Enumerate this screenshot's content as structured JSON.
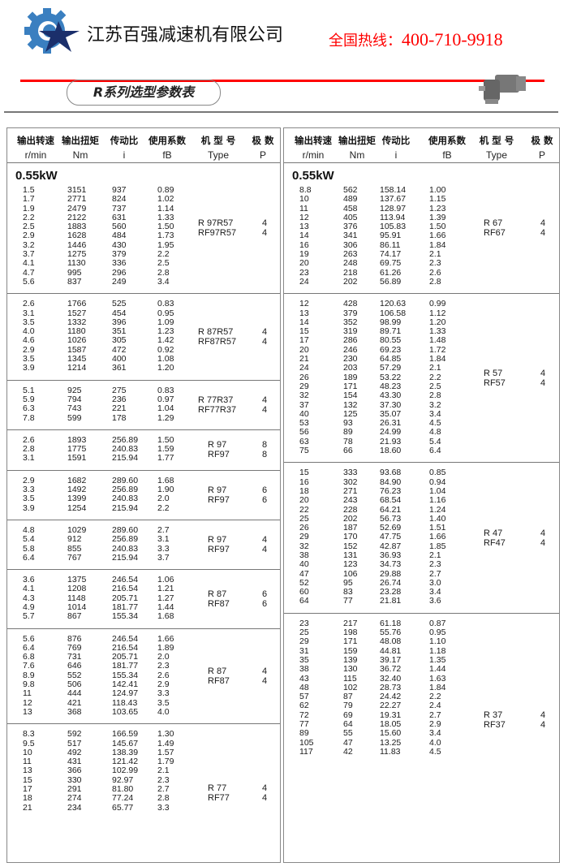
{
  "header": {
    "company": "江苏百强减速机有限公司",
    "hotline_label": "全国热线：",
    "hotline_number": "400-710-9918",
    "section_title": "R系列选型参数表",
    "brand_blue": "#3a7fc0",
    "brand_navy": "#1b2f6b",
    "accent_red": "#ff0000"
  },
  "columns": [
    {
      "cn": "输出转速",
      "en": "r/min"
    },
    {
      "cn": "输出扭矩",
      "en": "Nm"
    },
    {
      "cn": "传动比",
      "en": "i"
    },
    {
      "cn": "使用系数",
      "en": "fB"
    },
    {
      "cn": "机 型 号",
      "en": "Type"
    },
    {
      "cn": "极  数",
      "en": "P"
    }
  ],
  "tables": [
    {
      "blocks": [
        {
          "title": "0.55kW",
          "type": [
            "R  97R57",
            "RF97R57"
          ],
          "poles": [
            "4",
            "4"
          ],
          "rows": [
            [
              "1.5",
              "3151",
              "937",
              "0.89"
            ],
            [
              "1.7",
              "2771",
              "824",
              "1.02"
            ],
            [
              "1.9",
              "2479",
              "737",
              "1.14"
            ],
            [
              "2.2",
              "2122",
              "631",
              "1.33"
            ],
            [
              "2.5",
              "1883",
              "560",
              "1.50"
            ],
            [
              "2.9",
              "1628",
              "484",
              "1.73"
            ],
            [
              "3.2",
              "1446",
              "430",
              "1.95"
            ],
            [
              "3.7",
              "1275",
              "379",
              "2.2"
            ],
            [
              "4.1",
              "1130",
              "336",
              "2.5"
            ],
            [
              "4.7",
              "995",
              "296",
              "2.8"
            ],
            [
              "5.6",
              "837",
              "249",
              "3.4"
            ]
          ]
        },
        {
          "type": [
            "R  87R57",
            "RF87R57"
          ],
          "poles": [
            "4",
            "4"
          ],
          "rows": [
            [
              "2.6",
              "1766",
              "525",
              "0.83"
            ],
            [
              "3.1",
              "1527",
              "454",
              "0.95"
            ],
            [
              "3.5",
              "1332",
              "396",
              "1.09"
            ],
            [
              "4.0",
              "1180",
              "351",
              "1.23"
            ],
            [
              "4.6",
              "1026",
              "305",
              "1.42"
            ],
            [
              "2.9",
              "1587",
              "472",
              "0.92"
            ],
            [
              "3.5",
              "1345",
              "400",
              "1.08"
            ],
            [
              "3.9",
              "1214",
              "361",
              "1.20"
            ]
          ]
        },
        {
          "type": [
            "R  77R37",
            "RF77R37"
          ],
          "poles": [
            "4",
            "4"
          ],
          "rows": [
            [
              "5.1",
              "925",
              "275",
              "0.83"
            ],
            [
              "5.9",
              "794",
              "236",
              "0.97"
            ],
            [
              "6.3",
              "743",
              "221",
              "1.04"
            ],
            [
              "7.8",
              "599",
              "178",
              "1.29"
            ]
          ]
        },
        {
          "type": [
            "R  97",
            "RF97"
          ],
          "poles": [
            "8",
            "8"
          ],
          "indent": true,
          "rows": [
            [
              "2.6",
              "1893",
              "256.89",
              "1.50"
            ],
            [
              "2.8",
              "1775",
              "240.83",
              "1.59"
            ],
            [
              "3.1",
              "1591",
              "215.94",
              "1.77"
            ]
          ]
        },
        {
          "type": [
            "R  97",
            "RF97"
          ],
          "poles": [
            "6",
            "6"
          ],
          "indent": true,
          "rows": [
            [
              "2.9",
              "1682",
              "289.60",
              "1.68"
            ],
            [
              "3.3",
              "1492",
              "256.89",
              "1.90"
            ],
            [
              "3.5",
              "1399",
              "240.83",
              "2.0"
            ],
            [
              "3.9",
              "1254",
              "215.94",
              "2.2"
            ]
          ]
        },
        {
          "type": [
            "R  97",
            "RF97"
          ],
          "poles": [
            "4",
            "4"
          ],
          "indent": true,
          "rows": [
            [
              "4.8",
              "1029",
              "289.60",
              "2.7"
            ],
            [
              "5.4",
              "912",
              "256.89",
              "3.1"
            ],
            [
              "5.8",
              "855",
              "240.83",
              "3.3"
            ],
            [
              "6.4",
              "767",
              "215.94",
              "3.7"
            ]
          ]
        },
        {
          "type": [
            "R  87",
            "RF87"
          ],
          "poles": [
            "6",
            "6"
          ],
          "indent": true,
          "rows": [
            [
              "3.6",
              "1375",
              "246.54",
              "1.06"
            ],
            [
              "4.1",
              "1208",
              "216.54",
              "1.21"
            ],
            [
              "4.3",
              "1148",
              "205.71",
              "1.27"
            ],
            [
              "4.9",
              "1014",
              "181.77",
              "1.44"
            ],
            [
              "5.7",
              "867",
              "155.34",
              "1.68"
            ]
          ]
        },
        {
          "type": [
            "R  87",
            "RF87"
          ],
          "poles": [
            "4",
            "4"
          ],
          "indent": true,
          "rows": [
            [
              "5.6",
              "876",
              "246.54",
              "1.66"
            ],
            [
              "6.4",
              "769",
              "216.54",
              "1.89"
            ],
            [
              "6.8",
              "731",
              "205.71",
              "2.0"
            ],
            [
              "7.6",
              "646",
              "181.77",
              "2.3"
            ],
            [
              "8.9",
              "552",
              "155.34",
              "2.6"
            ],
            [
              "9.8",
              "506",
              "142.41",
              "2.9"
            ],
            [
              "11",
              "444",
              "124.97",
              "3.3"
            ],
            [
              "12",
              "421",
              "118.43",
              "3.5"
            ],
            [
              "13",
              "368",
              "103.65",
              "4.0"
            ]
          ]
        },
        {
          "type": [
            "R  77",
            "RF77"
          ],
          "poles": [
            "4",
            "4"
          ],
          "indent": true,
          "rows": [
            [
              "8.3",
              "592",
              "166.59",
              "1.30"
            ],
            [
              "9.5",
              "517",
              "145.67",
              "1.49"
            ],
            [
              "10",
              "492",
              "138.39",
              "1.57"
            ],
            [
              "11",
              "431",
              "121.42",
              "1.79"
            ],
            [
              "13",
              "366",
              "102.99",
              "2.1"
            ],
            [
              "15",
              "330",
              "92.97",
              "2.3"
            ],
            [
              "17",
              "291",
              "81.80",
              "2.7"
            ],
            [
              "18",
              "274",
              "77.24",
              "2.8"
            ],
            [
              "21",
              "234",
              "65.77",
              "3.3"
            ]
          ]
        }
      ]
    },
    {
      "blocks": [
        {
          "title": "0.55kW",
          "type": [
            "R  67",
            "RF67"
          ],
          "poles": [
            "4",
            "4"
          ],
          "rows": [
            [
              "8.8",
              "562",
              "158.14",
              "1.00"
            ],
            [
              "10",
              "489",
              "137.67",
              "1.15"
            ],
            [
              "11",
              "458",
              "128.97",
              "1.23"
            ],
            [
              "12",
              "405",
              "113.94",
              "1.39"
            ],
            [
              "13",
              "376",
              "105.83",
              "1.50"
            ],
            [
              "14",
              "341",
              "95.91",
              "1.66"
            ],
            [
              "16",
              "306",
              "86.11",
              "1.84"
            ],
            [
              "19",
              "263",
              "74.17",
              "2.1"
            ],
            [
              "20",
              "248",
              "69.75",
              "2.3"
            ],
            [
              "23",
              "218",
              "61.26",
              "2.6"
            ],
            [
              "24",
              "202",
              "56.89",
              "2.8"
            ]
          ]
        },
        {
          "type": [
            "R  57",
            "RF57"
          ],
          "poles": [
            "4",
            "4"
          ],
          "rows": [
            [
              "12",
              "428",
              "120.63",
              "0.99"
            ],
            [
              "13",
              "379",
              "106.58",
              "1.12"
            ],
            [
              "14",
              "352",
              "98.99",
              "1.20"
            ],
            [
              "15",
              "319",
              "89.71",
              "1.33"
            ],
            [
              "17",
              "286",
              "80.55",
              "1.48"
            ],
            [
              "20",
              "246",
              "69.23",
              "1.72"
            ],
            [
              "21",
              "230",
              "64.85",
              "1.84"
            ],
            [
              "24",
              "203",
              "57.29",
              "2.1"
            ],
            [
              "26",
              "189",
              "53.22",
              "2.2"
            ],
            [
              "29",
              "171",
              "48.23",
              "2.5"
            ],
            [
              "32",
              "154",
              "43.30",
              "2.8"
            ],
            [
              "37",
              "132",
              "37.30",
              "3.2"
            ],
            [
              "40",
              "125",
              "35.07",
              "3.4"
            ],
            [
              "53",
              "93",
              "26.31",
              "4.5"
            ],
            [
              "56",
              "89",
              "24.99",
              "4.8"
            ],
            [
              "63",
              "78",
              "21.93",
              "5.4"
            ],
            [
              "75",
              "66",
              "18.60",
              "6.4"
            ]
          ]
        },
        {
          "type": [
            "R  47",
            "RF47"
          ],
          "poles": [
            "4",
            "4"
          ],
          "rows": [
            [
              "15",
              "333",
              "93.68",
              "0.85"
            ],
            [
              "16",
              "302",
              "84.90",
              "0.94"
            ],
            [
              "18",
              "271",
              "76.23",
              "1.04"
            ],
            [
              "20",
              "243",
              "68.54",
              "1.16"
            ],
            [
              "22",
              "228",
              "64.21",
              "1.24"
            ],
            [
              "25",
              "202",
              "56.73",
              "1.40"
            ],
            [
              "26",
              "187",
              "52.69",
              "1.51"
            ],
            [
              "29",
              "170",
              "47.75",
              "1.66"
            ],
            [
              "32",
              "152",
              "42.87",
              "1.85"
            ],
            [
              "38",
              "131",
              "36.93",
              "2.1"
            ],
            [
              "40",
              "123",
              "34.73",
              "2.3"
            ],
            [
              "47",
              "106",
              "29.88",
              "2.7"
            ],
            [
              "52",
              "95",
              "26.74",
              "3.0"
            ],
            [
              "60",
              "83",
              "23.28",
              "3.4"
            ],
            [
              "64",
              "77",
              "21.81",
              "3.6"
            ]
          ]
        },
        {
          "type": [
            "R  37",
            "RF37"
          ],
          "poles": [
            "4",
            "4"
          ],
          "top": true,
          "rows": [
            [
              "23",
              "217",
              "61.18",
              "0.87"
            ],
            [
              "25",
              "198",
              "55.76",
              "0.95"
            ],
            [
              "29",
              "171",
              "48.08",
              "1.10"
            ],
            [
              "31",
              "159",
              "44.81",
              "1.18"
            ],
            [
              "35",
              "139",
              "39.17",
              "1.35"
            ],
            [
              "38",
              "130",
              "36.72",
              "1.44"
            ],
            [
              "43",
              "115",
              "32.40",
              "1.63"
            ],
            [
              "48",
              "102",
              "28.73",
              "1.84"
            ],
            [
              "57",
              "87",
              "24.42",
              "2.2"
            ],
            [
              "62",
              "79",
              "22.27",
              "2.4"
            ],
            [
              "72",
              "69",
              "19.31",
              "2.7"
            ],
            [
              "77",
              "64",
              "18.05",
              "2.9"
            ],
            [
              "89",
              "55",
              "15.60",
              "3.4"
            ],
            [
              "105",
              "47",
              "13.25",
              "4.0"
            ],
            [
              "117",
              "42",
              "11.83",
              "4.5"
            ]
          ]
        }
      ]
    }
  ]
}
